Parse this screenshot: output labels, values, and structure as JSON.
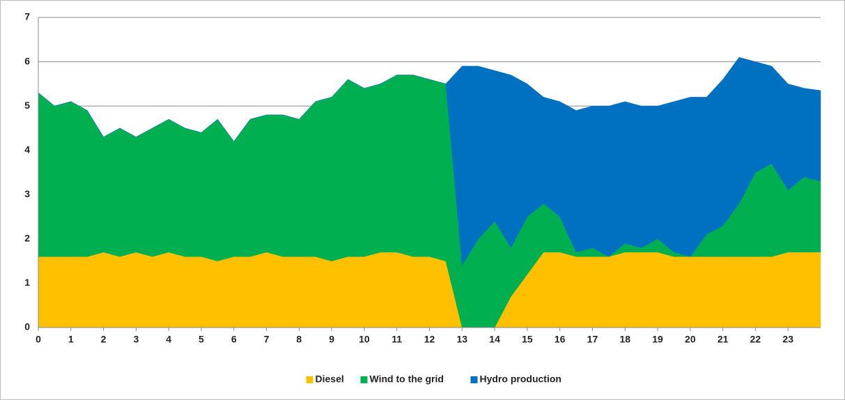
{
  "chart_data": {
    "type": "stacked_area",
    "x": [
      0,
      0.5,
      1,
      1.5,
      2,
      2.5,
      3,
      3.5,
      4,
      4.5,
      5,
      5.5,
      6,
      6.5,
      7,
      7.5,
      8,
      8.5,
      9,
      9.5,
      10,
      10.5,
      11,
      11.5,
      12,
      12.5,
      13,
      13.5,
      14,
      14.5,
      15,
      15.5,
      16,
      16.5,
      17,
      17.5,
      18,
      18.5,
      19,
      19.5,
      20,
      20.5,
      21,
      21.5,
      22,
      22.5,
      23,
      23.5,
      24
    ],
    "series": [
      {
        "name": "Diesel",
        "color": "#ffc000",
        "values": [
          1.6,
          1.6,
          1.6,
          1.6,
          1.7,
          1.6,
          1.7,
          1.6,
          1.7,
          1.6,
          1.6,
          1.5,
          1.6,
          1.6,
          1.7,
          1.6,
          1.6,
          1.6,
          1.5,
          1.6,
          1.6,
          1.7,
          1.7,
          1.6,
          1.6,
          1.5,
          0,
          0,
          0,
          0.7,
          1.2,
          1.7,
          1.7,
          1.6,
          1.6,
          1.6,
          1.7,
          1.7,
          1.7,
          1.6,
          1.6,
          1.6,
          1.6,
          1.6,
          1.6,
          1.6,
          1.7,
          1.7,
          1.7
        ]
      },
      {
        "name": "Wind to the grid",
        "color": "#00b050",
        "values": [
          3.7,
          3.4,
          3.5,
          3.3,
          2.6,
          2.9,
          2.6,
          2.9,
          3.0,
          2.9,
          2.8,
          3.2,
          2.6,
          3.1,
          3.1,
          3.2,
          3.1,
          3.5,
          3.7,
          4.0,
          3.8,
          3.8,
          4.0,
          4.1,
          4.0,
          4.0,
          1.4,
          2.0,
          2.4,
          1.1,
          1.3,
          1.1,
          0.8,
          0.1,
          0.2,
          0,
          0.2,
          0.1,
          0.3,
          0.1,
          0,
          0.5,
          0.7,
          1.2,
          1.9,
          2.1,
          1.4,
          1.7,
          1.6
        ]
      },
      {
        "name": "Hydro production",
        "color": "#0070c0",
        "values": [
          0,
          0,
          0,
          0,
          0,
          0,
          0,
          0,
          0,
          0,
          0,
          0,
          0,
          0,
          0,
          0,
          0,
          0,
          0,
          0,
          0,
          0,
          0,
          0,
          0,
          0,
          4.5,
          3.9,
          3.4,
          3.9,
          3.0,
          2.4,
          2.6,
          3.2,
          3.2,
          3.4,
          3.2,
          3.2,
          3.0,
          3.4,
          3.6,
          3.1,
          3.3,
          3.3,
          2.5,
          2.2,
          2.4,
          2.0,
          2.05
        ]
      }
    ],
    "xlim": [
      0,
      24
    ],
    "xticks": [
      0,
      1,
      2,
      3,
      4,
      5,
      6,
      7,
      8,
      9,
      10,
      11,
      12,
      13,
      14,
      15,
      16,
      17,
      18,
      19,
      20,
      21,
      22,
      23
    ],
    "ylim": [
      0,
      7
    ],
    "yticks": [
      0,
      1,
      2,
      3,
      4,
      5,
      6,
      7
    ],
    "grid": true,
    "legend": "bottom"
  }
}
